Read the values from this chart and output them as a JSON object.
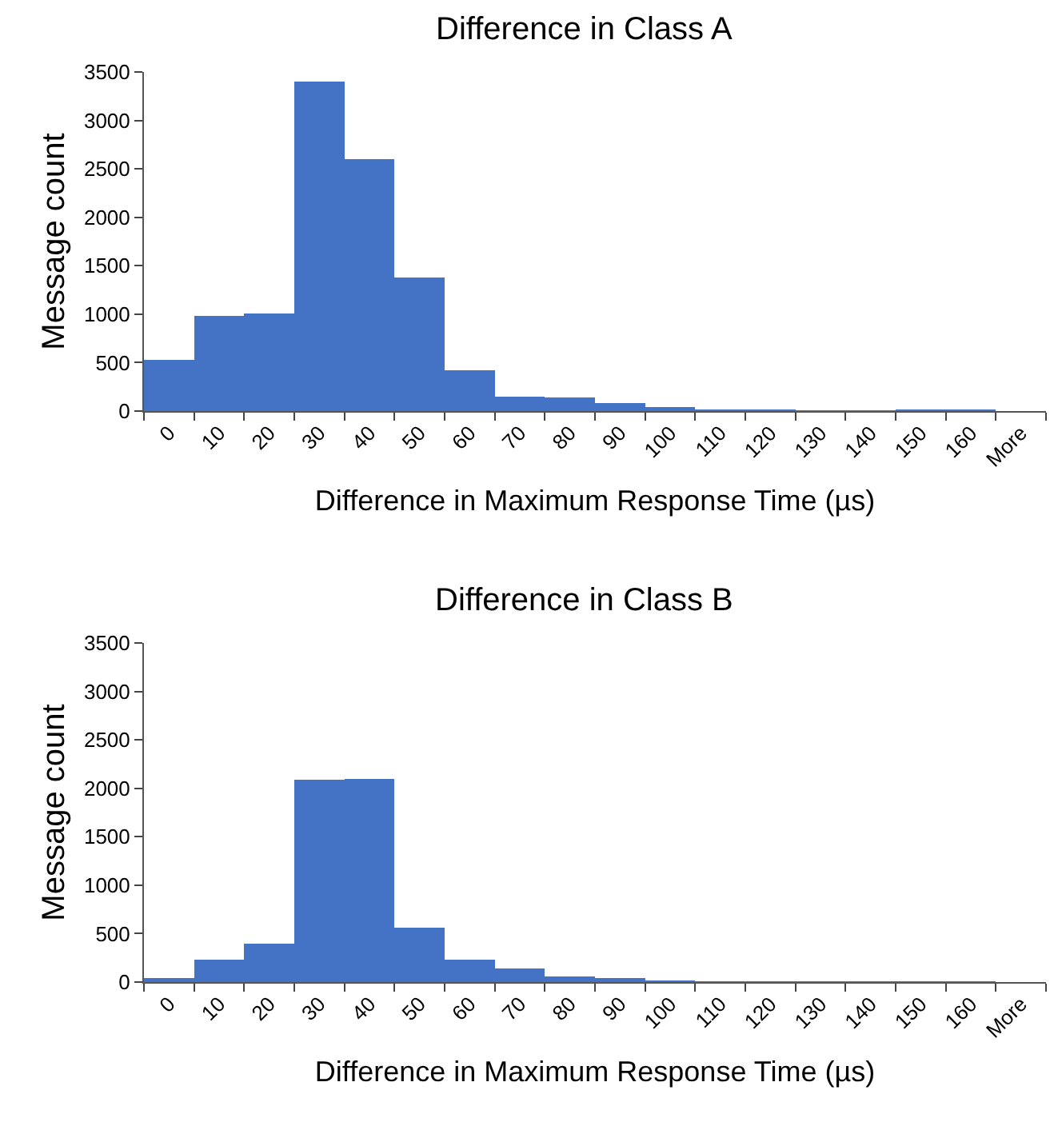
{
  "chart_data": [
    {
      "type": "bar",
      "title": "Difference in Class A",
      "xlabel": "Difference in Maximum Response Time (µs)",
      "ylabel": "Message count",
      "categories": [
        "0",
        "10",
        "20",
        "30",
        "40",
        "50",
        "60",
        "70",
        "80",
        "90",
        "100",
        "110",
        "120",
        "130",
        "140",
        "150",
        "160",
        "More"
      ],
      "series": [
        {
          "color": "#4472c4",
          "values": [
            530,
            980,
            1010,
            3400,
            2600,
            1380,
            420,
            150,
            140,
            80,
            40,
            20,
            20,
            10,
            10,
            20,
            20,
            0
          ]
        }
      ],
      "ylim": [
        0,
        3500
      ],
      "yticks": [
        0,
        500,
        1000,
        1500,
        2000,
        2500,
        3000,
        3500
      ],
      "grid": false
    },
    {
      "type": "bar",
      "title": "Difference in Class B",
      "xlabel": "Difference in Maximum Response Time (µs)",
      "ylabel": "Message count",
      "categories": [
        "0",
        "10",
        "20",
        "30",
        "40",
        "50",
        "60",
        "70",
        "80",
        "90",
        "100",
        "110",
        "120",
        "130",
        "140",
        "150",
        "160",
        "More"
      ],
      "series": [
        {
          "color": "#4472c4",
          "values": [
            40,
            230,
            400,
            2090,
            2100,
            560,
            230,
            140,
            60,
            40,
            20,
            10,
            10,
            10,
            10,
            10,
            10,
            0
          ]
        }
      ],
      "ylim": [
        0,
        3500
      ],
      "yticks": [
        0,
        500,
        1000,
        1500,
        2000,
        2500,
        3000,
        3500
      ],
      "grid": false
    }
  ]
}
